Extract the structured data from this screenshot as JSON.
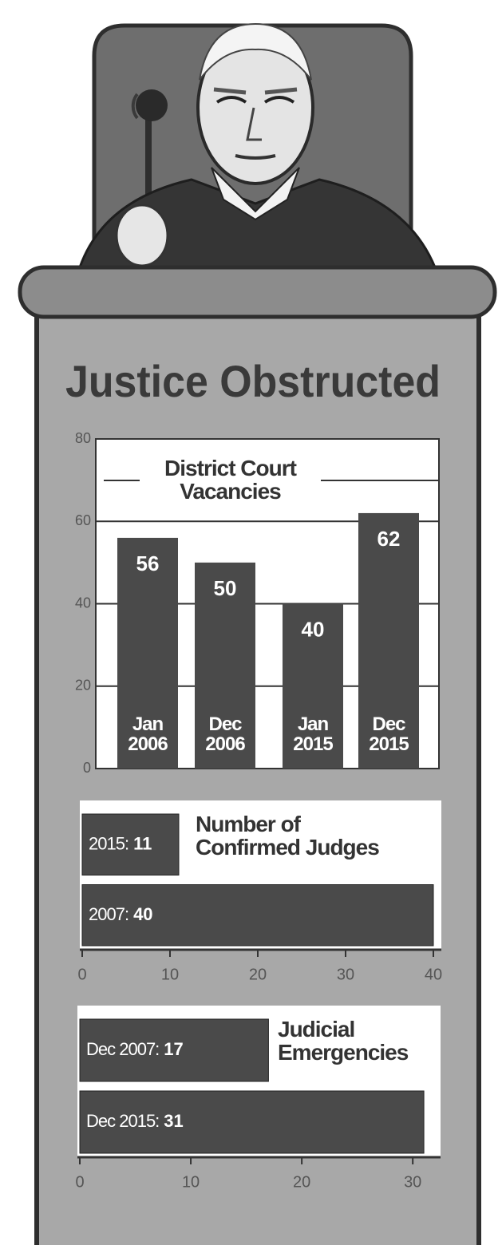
{
  "title": "Justice Obstructed",
  "chart_data": [
    {
      "type": "bar",
      "title": "District Court Vacancies",
      "categories": [
        "Jan 2006",
        "Dec 2006",
        "Jan 2015",
        "Dec 2015"
      ],
      "values": [
        56,
        50,
        40,
        62
      ],
      "color": "#4a4a4a",
      "ylim": [
        0,
        80
      ],
      "yticks": [
        0,
        20,
        40,
        60,
        80
      ],
      "grid": true
    },
    {
      "type": "barh",
      "title": "Number of Confirmed Judges",
      "categories": [
        "2015:",
        "2007:"
      ],
      "values": [
        11,
        40
      ],
      "color": "#4a4a4a",
      "xlim": [
        0,
        40
      ],
      "xticks": [
        0,
        10,
        20,
        30,
        40
      ]
    },
    {
      "type": "barh",
      "title": "Judicial Emergencies",
      "categories": [
        "Dec 2007:",
        "Dec 2015:"
      ],
      "values": [
        17,
        31
      ],
      "color": "#4a4a4a",
      "xlim": [
        0,
        32
      ],
      "xticks": [
        0,
        10,
        20,
        30
      ]
    }
  ]
}
